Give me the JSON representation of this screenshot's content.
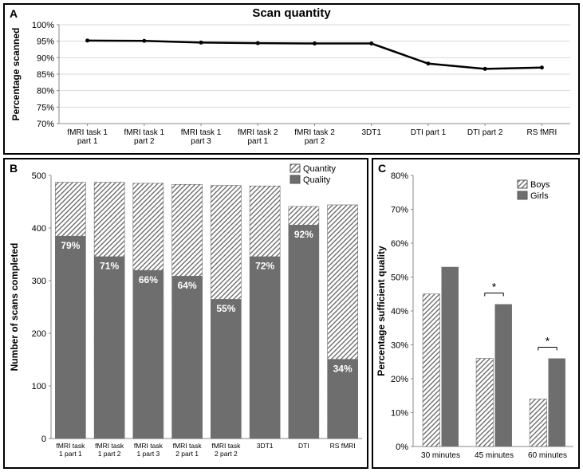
{
  "panelA": {
    "label": "A",
    "title": "Scan quantity",
    "ytitle": "Percentage scanned",
    "ylim": [
      70,
      100
    ],
    "ytick_step": 5,
    "categories": [
      "fMRI task 1\npart 1",
      "fMRI task 1\npart 2",
      "fMRI task 1\npart 3",
      "fMRI task 2\npart 1",
      "fMRI task 2\npart 2",
      "3DT1",
      "DTI part 1",
      "DTI part 2",
      "RS fMRI"
    ],
    "values": [
      95.2,
      95.1,
      94.6,
      94.4,
      94.3,
      94.3,
      88.2,
      86.6,
      87.0
    ],
    "line_color": "#000000",
    "line_width": 2.5,
    "grid_color": "#d9d9d9",
    "background": "#ffffff"
  },
  "panelB": {
    "label": "B",
    "ytitle": "Number of scans completed",
    "ylim": [
      0,
      500
    ],
    "ytick_step": 100,
    "categories": [
      "fMRI task\n1 part 1",
      "fMRI task\n1 part 2",
      "fMRI task\n1 part 3",
      "fMRI task\n2 part 1",
      "fMRI task\n2 part 2",
      "3DT1",
      "DTI",
      "RS fMRI"
    ],
    "quantity": [
      487,
      487,
      485,
      483,
      481,
      480,
      441,
      444
    ],
    "quality": [
      385,
      346,
      320,
      309,
      265,
      346,
      406,
      151
    ],
    "quality_pct_labels": [
      "79%",
      "71%",
      "66%",
      "64%",
      "55%",
      "72%",
      "92%",
      "34%"
    ],
    "legend": [
      "Quantity",
      "Quality"
    ],
    "solid_color": "#6e6e6e",
    "hatch_color": "#6e6e6e",
    "background": "#ffffff"
  },
  "panelC": {
    "label": "C",
    "ytitle": "Percentage sufficient quality",
    "ylim": [
      0,
      80
    ],
    "ytick_step": 10,
    "categories": [
      "30 minutes",
      "45 minutes",
      "60 minutes"
    ],
    "boys": [
      45,
      26,
      14
    ],
    "girls": [
      53,
      42,
      26
    ],
    "sig_markers": [
      false,
      true,
      true
    ],
    "legend": [
      "Boys",
      "Girls"
    ],
    "boys_fill": "hatch",
    "girls_color": "#6e6e6e",
    "background": "#ffffff"
  }
}
